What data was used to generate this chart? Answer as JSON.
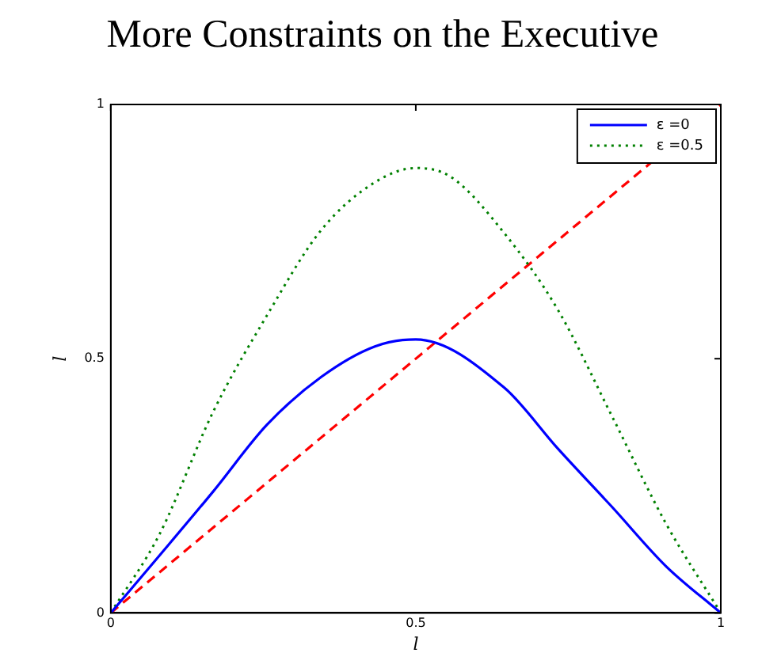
{
  "chart_data": {
    "type": "line",
    "title": "More Constraints on the Executive",
    "xlabel": "l",
    "ylabel": "l",
    "xlim": [
      0,
      1
    ],
    "ylim": [
      0,
      1
    ],
    "xticks": [
      0,
      0.5,
      1
    ],
    "yticks": [
      0,
      0.5,
      1
    ],
    "grid": false,
    "legend": "top right",
    "marker": "none",
    "series": [
      {
        "name": "ε =0",
        "color": "#0000ff",
        "line_style": "solid",
        "x": [
          0,
          0.08,
          0.168,
          0.256,
          0.345,
          0.433,
          0.5,
          0.645,
          0.733,
          0.822,
          0.91,
          1
        ],
        "values": [
          0,
          0.113,
          0.239,
          0.37,
          0.464,
          0.524,
          0.538,
          0.443,
          0.323,
          0.208,
          0.092,
          0
        ]
      },
      {
        "name": "ε =0.5",
        "color": "#008000",
        "line_style": "dotted",
        "x": [
          0,
          0.08,
          0.168,
          0.256,
          0.345,
          0.433,
          0.5,
          0.557,
          0.645,
          0.733,
          0.822,
          0.91,
          1
        ],
        "values": [
          0,
          0.155,
          0.396,
          0.585,
          0.753,
          0.847,
          0.875,
          0.858,
          0.747,
          0.596,
          0.386,
          0.176,
          0
        ]
      },
      {
        "color": "#ff0000",
        "line_style": "dashed",
        "x": [
          0,
          1
        ],
        "values": [
          0,
          1
        ]
      }
    ]
  }
}
